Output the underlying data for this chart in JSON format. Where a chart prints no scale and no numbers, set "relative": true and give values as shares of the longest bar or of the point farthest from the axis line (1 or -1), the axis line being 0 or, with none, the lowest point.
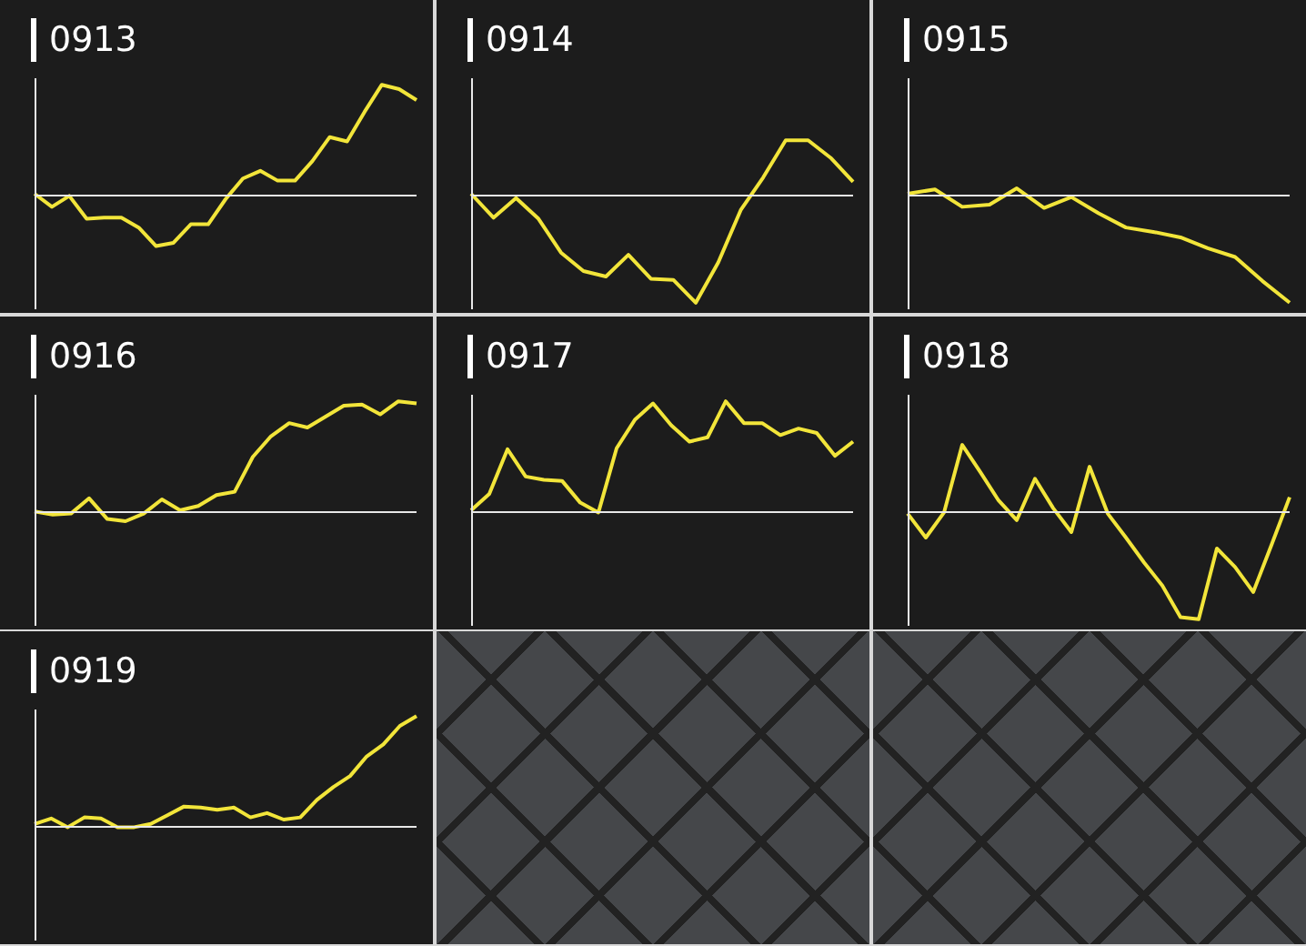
{
  "chart_data": [
    {
      "type": "line",
      "title": "0913",
      "relative": true,
      "marker": "none",
      "categories": [
        null,
        null,
        null,
        null,
        null,
        null,
        null,
        null,
        null,
        null,
        null,
        null,
        null,
        null,
        null,
        null,
        null,
        null,
        null,
        null,
        null,
        null,
        null
      ],
      "series": [
        {
          "color": "#f2e53a",
          "values": [
            0,
            -0.12,
            -0.02,
            -0.23,
            -0.22,
            -0.22,
            -0.31,
            -0.48,
            -0.45,
            -0.28,
            -0.28,
            -0.05,
            0.14,
            0.21,
            0.12,
            0.12,
            0.3,
            0.52,
            0.48,
            0.75,
            1,
            0.96,
            0.86
          ]
        }
      ]
    },
    {
      "type": "line",
      "title": "0914",
      "relative": true,
      "marker": "none",
      "categories": [
        null,
        null,
        null,
        null,
        null,
        null,
        null,
        null,
        null,
        null,
        null,
        null,
        null,
        null,
        null,
        null,
        null,
        null
      ],
      "series": [
        {
          "color": "#f2e53a",
          "values": [
            0,
            -0.22,
            -0.04,
            -0.23,
            -0.54,
            -0.71,
            -0.76,
            -0.56,
            -0.78,
            -0.79,
            -1,
            -0.63,
            -0.15,
            0.15,
            0.49,
            0.49,
            0.33,
            0.11
          ]
        }
      ]
    },
    {
      "type": "line",
      "title": "0915",
      "relative": true,
      "marker": "none",
      "categories": [
        null,
        null,
        null,
        null,
        null,
        null,
        null,
        null,
        null,
        null,
        null,
        null,
        null,
        null,
        null
      ],
      "series": [
        {
          "color": "#f2e53a",
          "values": [
            0,
            0.04,
            -0.12,
            -0.1,
            0.05,
            -0.13,
            -0.03,
            -0.18,
            -0.31,
            -0.35,
            -0.4,
            -0.5,
            -0.58,
            -0.8,
            -1
          ]
        }
      ]
    },
    {
      "type": "line",
      "title": "0916",
      "relative": true,
      "marker": "none",
      "categories": [
        null,
        null,
        null,
        null,
        null,
        null,
        null,
        null,
        null,
        null,
        null,
        null,
        null,
        null,
        null,
        null,
        null,
        null,
        null,
        null,
        null,
        null
      ],
      "series": [
        {
          "color": "#f2e53a",
          "values": [
            -0.01,
            -0.04,
            -0.03,
            0.11,
            -0.08,
            -0.1,
            -0.03,
            0.1,
            0,
            0.04,
            0.14,
            0.17,
            0.49,
            0.68,
            0.8,
            0.76,
            0.86,
            0.96,
            0.97,
            0.88,
            1,
            0.98
          ]
        }
      ]
    },
    {
      "type": "line",
      "title": "0917",
      "relative": true,
      "marker": "none",
      "categories": [
        null,
        null,
        null,
        null,
        null,
        null,
        null,
        null,
        null,
        null,
        null,
        null,
        null,
        null,
        null,
        null,
        null,
        null,
        null,
        null,
        null,
        null
      ],
      "series": [
        {
          "color": "#f2e53a",
          "values": [
            0,
            0.15,
            0.56,
            0.31,
            0.28,
            0.27,
            0.07,
            -0.02,
            0.57,
            0.83,
            0.98,
            0.78,
            0.63,
            0.67,
            1,
            0.8,
            0.8,
            0.69,
            0.75,
            0.71,
            0.5,
            0.63
          ]
        }
      ]
    },
    {
      "type": "line",
      "title": "0918",
      "relative": true,
      "marker": "none",
      "categories": [
        null,
        null,
        null,
        null,
        null,
        null,
        null,
        null,
        null,
        null,
        null,
        null,
        null,
        null,
        null,
        null,
        null,
        null,
        null,
        null,
        null,
        null
      ],
      "series": [
        {
          "color": "#f2e53a",
          "values": [
            -0.03,
            -0.25,
            -0.02,
            0.6,
            0.35,
            0.09,
            -0.09,
            0.29,
            0.02,
            -0.2,
            0.4,
            -0.03,
            -0.25,
            -0.48,
            -0.69,
            -0.98,
            -1,
            -0.35,
            -0.52,
            -0.75,
            -0.32,
            0.12
          ]
        }
      ]
    },
    {
      "type": "line",
      "title": "0919",
      "relative": true,
      "marker": "none",
      "categories": [
        null,
        null,
        null,
        null,
        null,
        null,
        null,
        null,
        null,
        null,
        null,
        null,
        null,
        null,
        null,
        null,
        null,
        null,
        null,
        null,
        null,
        null,
        null,
        null
      ],
      "series": [
        {
          "color": "#f2e53a",
          "values": [
            0.01,
            0.06,
            -0.02,
            0.07,
            0.06,
            -0.02,
            -0.02,
            0.01,
            0.09,
            0.17,
            0.16,
            0.14,
            0.16,
            0.07,
            0.11,
            0.05,
            0.07,
            0.23,
            0.35,
            0.45,
            0.63,
            0.74,
            0.91,
            1
          ]
        }
      ]
    }
  ]
}
